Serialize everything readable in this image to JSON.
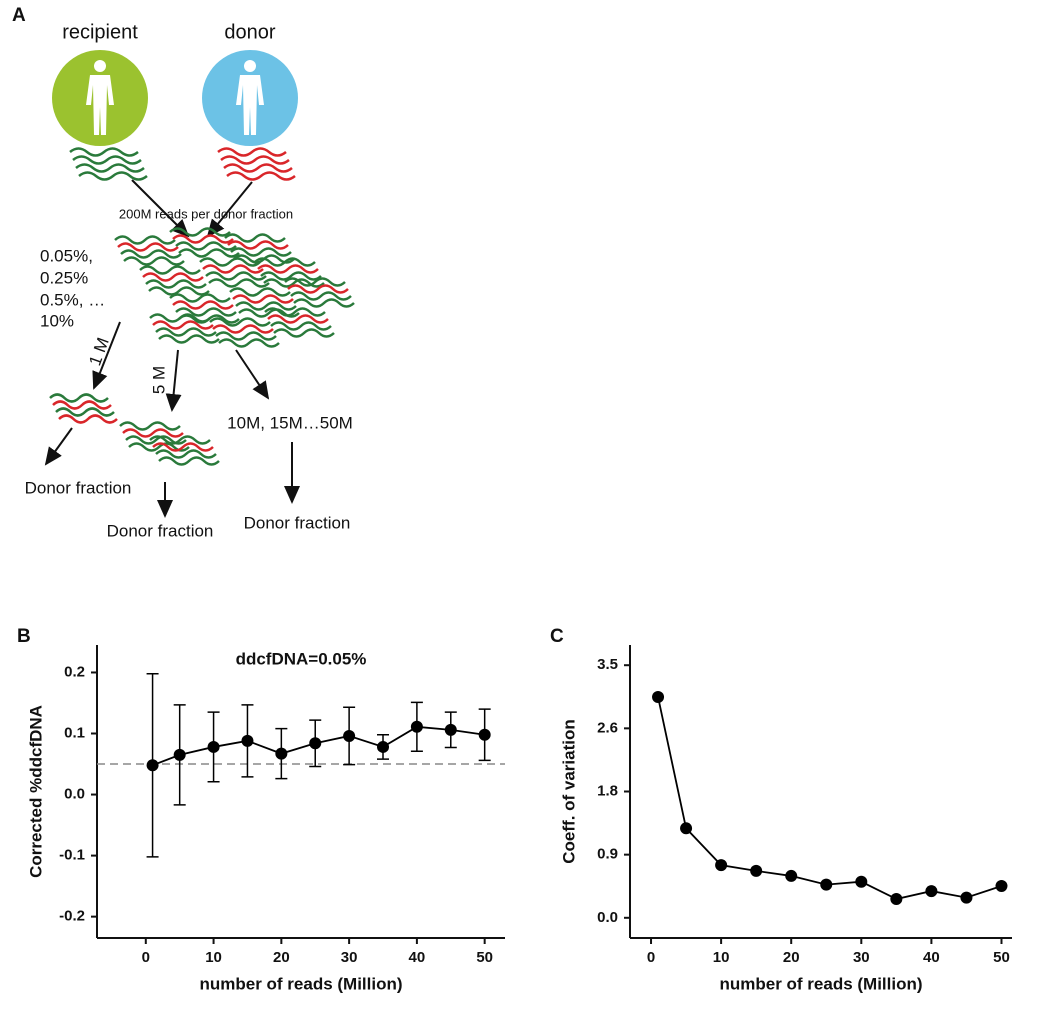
{
  "diagram": {
    "panel_label": "A",
    "recipient": "recipient",
    "donor": "donor",
    "reads": "200M reads per donor fraction",
    "fractions": [
      "0.05%,",
      "0.25%",
      "0.5%, …",
      "10%"
    ],
    "sample_1": "1 M",
    "sample_5": "5 M",
    "sample_rest": "10M, 15M…50M",
    "outputs": [
      "Donor fraction",
      "Donor fraction",
      "Donor fraction"
    ]
  },
  "chart_data": [
    {
      "type": "line",
      "panel_label": "B",
      "title": "ddcfDNA=0.05%",
      "x_label": "number of reads (Million)",
      "y_label": "Corrected %ddcfDNA",
      "x": [
        1,
        5,
        10,
        15,
        20,
        25,
        30,
        35,
        40,
        45,
        50
      ],
      "values": [
        0.048,
        0.065,
        0.078,
        0.088,
        0.067,
        0.084,
        0.096,
        0.078,
        0.111,
        0.106,
        0.098
      ],
      "errors": [
        0.15,
        0.082,
        0.057,
        0.059,
        0.041,
        0.038,
        0.047,
        0.02,
        0.04,
        0.029,
        0.042
      ],
      "reference_line": 0.05,
      "color": "#000000",
      "xlim": [
        -7.2,
        53
      ],
      "xticks": [
        0,
        10,
        20,
        30,
        40,
        50
      ],
      "ylim": [
        -0.235,
        0.245
      ],
      "yticks": [
        -0.2,
        -0.1,
        {
          "value": 0,
          "label": "0.0"
        },
        0.1,
        0.2
      ]
    },
    {
      "type": "line",
      "panel_label": "C",
      "x_label": "number of reads (Million)",
      "y_label": "Coeff. of variation",
      "x": [
        1,
        5,
        10,
        15,
        20,
        25,
        30,
        35,
        40,
        45,
        50
      ],
      "values": [
        3.06,
        1.24,
        0.73,
        0.65,
        0.58,
        0.46,
        0.5,
        0.26,
        0.37,
        0.28,
        0.44
      ],
      "color": "#000000",
      "xlim": [
        -3,
        51.5
      ],
      "xticks": [
        0,
        10,
        20,
        30,
        40,
        50
      ],
      "ylim": [
        -0.28,
        3.78
      ],
      "yticks": [
        {
          "value": 0,
          "label": "0.0"
        },
        {
          "value": 0.875,
          "label": "0.9"
        },
        {
          "value": 1.75,
          "label": "1.8"
        },
        {
          "value": 2.625,
          "label": "2.6"
        },
        3.5
      ]
    }
  ]
}
